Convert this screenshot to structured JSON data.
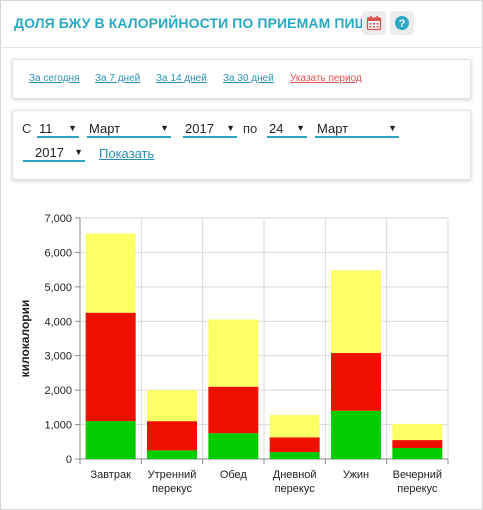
{
  "header": {
    "title": "ДОЛЯ БЖУ В КАЛОРИЙНОСТИ ПО ПРИЕМАМ ПИЩИ",
    "calendar_icon": "calendar-icon",
    "help_icon": "help-icon"
  },
  "periods": [
    {
      "label": "За сегодня"
    },
    {
      "label": "За 7 дней"
    },
    {
      "label": "За 14 дней"
    },
    {
      "label": "За 30 дней"
    },
    {
      "label": "Указать период",
      "color": "#d9534f"
    }
  ],
  "range": {
    "from_label": "С",
    "from_day": "11",
    "from_month": "Март",
    "from_year": "2017",
    "to_label": "по",
    "to_day": "24",
    "to_month": "Март",
    "to_year": "2017",
    "show_label": "Показать"
  },
  "colors": {
    "accent": "#29a9c4",
    "link": "#2b8fb8",
    "protein": "#00cc00",
    "fat": "#ee1100",
    "carbs": "#ffff66"
  },
  "chart_data": {
    "type": "bar",
    "stacked": true,
    "ylabel": "килокалории",
    "ylim": [
      0,
      7000
    ],
    "yticks": [
      "0",
      "1,000",
      "2,000",
      "3,000",
      "4,000",
      "5,000",
      "6,000",
      "7,000"
    ],
    "grid": true,
    "categories": [
      [
        "Завтрак"
      ],
      [
        "Утренний",
        "перекус"
      ],
      [
        "Обед"
      ],
      [
        "Дневной",
        "перекус"
      ],
      [
        "Ужин"
      ],
      [
        "Вечерний",
        "перекус"
      ]
    ],
    "series": [
      {
        "color": "#00cc00",
        "values": [
          1100,
          250,
          750,
          200,
          1400,
          320
        ]
      },
      {
        "color": "#ee1100",
        "values": [
          3150,
          850,
          1350,
          430,
          1680,
          230
        ]
      },
      {
        "color": "#ffff66",
        "values": [
          2300,
          900,
          1950,
          650,
          2400,
          470
        ]
      }
    ]
  }
}
